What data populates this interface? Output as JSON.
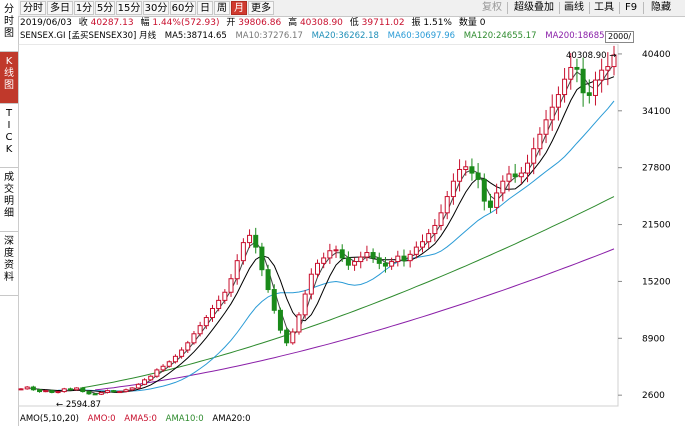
{
  "period_tabs": [
    "分时",
    "多日",
    "1分",
    "5分",
    "15分",
    "30分",
    "60分",
    "日",
    "周",
    "月",
    "更多"
  ],
  "active_period": "月",
  "right_menu": [
    "复权",
    "超级叠加",
    "画线",
    "工具",
    "F9",
    "隐藏"
  ],
  "side_tabs": [
    "分\n时\n图",
    "K\n线\n图",
    "T\nI\nC\nK",
    "成\n交\n明\n细",
    "深\n度\n资\n料"
  ],
  "info": {
    "date": "2019/06/03",
    "close_label": "收",
    "close": "40287.13",
    "change_label": "幅",
    "change": "1.44%(572.93)",
    "open_label": "开",
    "open": "39806.86",
    "high_label": "高",
    "high": "40308.90",
    "low_label": "低",
    "low": "39711.02",
    "amp_label": "振",
    "amp": "1.51%",
    "vol_label": "数量",
    "vol": "0"
  },
  "ma_line": {
    "code": "SENSEX.GI [孟买SENSEX30] 月线",
    "ma5": "MA5:38714.65",
    "ma10": "MA10:37276.17",
    "ma20": "MA20:36262.18",
    "ma60": "MA60:30697.96",
    "ma120": "MA120:24655.17",
    "ma200": "MA200:18685.55"
  },
  "year_button": "2000/",
  "colors": {
    "ma5": "#000000",
    "ma10": "#555555",
    "ma20": "#27a9c9",
    "ma60": "#2e8b2e",
    "ma120": "#3a7d3a",
    "ma200": "#8a1fa8",
    "up": "#c8102e",
    "down": "#1a8a1a",
    "accent": "#d03a2f"
  },
  "bottom_line": {
    "amo": "AMO(5,10,20)",
    "amo0": "AMO:0",
    "ama5": "AMA5:0",
    "ama10": "AMA10:0",
    "ama20": "AMA20:0"
  },
  "chart_data": {
    "type": "candlestick",
    "y_ticks": [
      "40400",
      "34100",
      "27800",
      "21500",
      "15200",
      "8900",
      "2600"
    ],
    "y_values": [
      40400,
      34100,
      27800,
      21500,
      15200,
      8900,
      2600
    ],
    "ylim": [
      1400,
      41500
    ],
    "annotations": {
      "high": "40308.90",
      "low": "2594.87"
    },
    "close_path": [
      3300,
      3500,
      3200,
      3000,
      3100,
      2900,
      3000,
      3300,
      3200,
      3400,
      3000,
      2750,
      2700,
      2900,
      3100,
      3000,
      3000,
      3200,
      3400,
      3800,
      4300,
      4700,
      5400,
      5800,
      6300,
      6900,
      7600,
      8400,
      9400,
      10300,
      11200,
      12200,
      13100,
      14000,
      15500,
      17500,
      19500,
      20300,
      19000,
      16500,
      14300,
      12000,
      9800,
      8400,
      9600,
      11500,
      13800,
      16000,
      17200,
      17800,
      18600,
      18700,
      17800,
      17000,
      17400,
      17900,
      18400,
      17800,
      17200,
      16900,
      17400,
      18000,
      17500,
      18200,
      19000,
      19600,
      20500,
      21400,
      22800,
      24600,
      26300,
      27600,
      27900,
      27200,
      26500,
      24100,
      23400,
      25000,
      26300,
      27100,
      26800,
      27200,
      28300,
      29900,
      31500,
      33100,
      34500,
      35900,
      37600,
      38900,
      38700,
      36100,
      35800,
      37500,
      38600,
      39000,
      40287
    ]
  }
}
